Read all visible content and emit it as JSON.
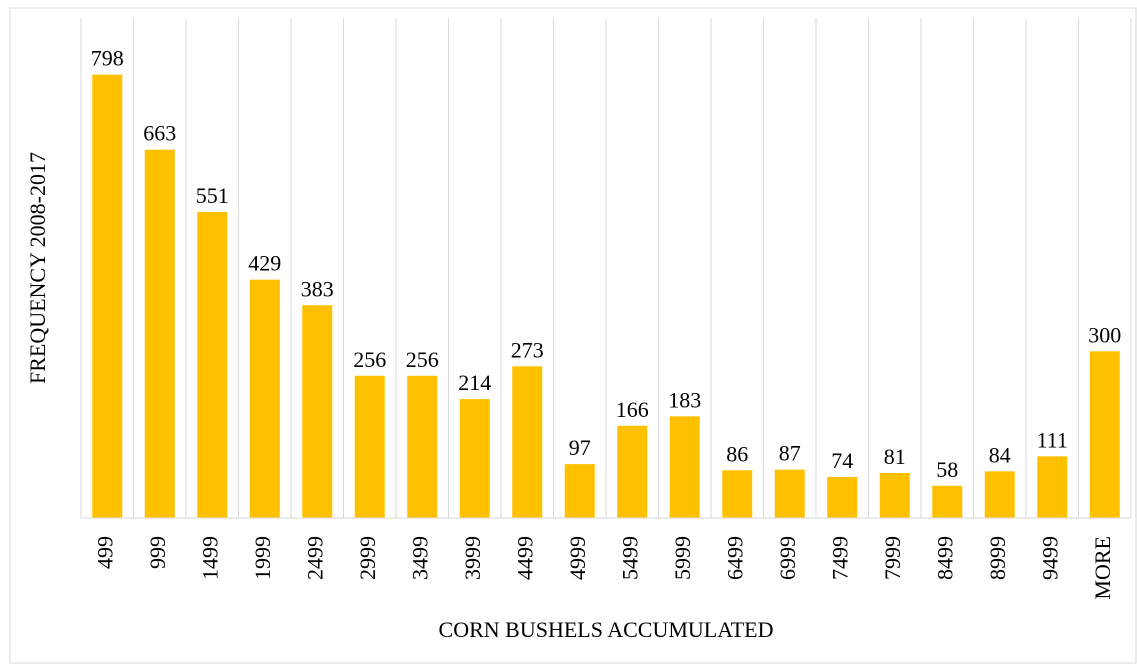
{
  "chart_data": {
    "type": "bar",
    "x_label": "CORN BUSHELS ACCUMULATED",
    "y_label": "FREQUENCY 2008-2017",
    "categories": [
      "499",
      "999",
      "1499",
      "1999",
      "2499",
      "2999",
      "3499",
      "3999",
      "4499",
      "4999",
      "5499",
      "5999",
      "6499",
      "6999",
      "7499",
      "7999",
      "8499",
      "8999",
      "9499",
      "MORE"
    ],
    "values": [
      798,
      663,
      551,
      429,
      383,
      256,
      256,
      214,
      273,
      97,
      166,
      183,
      86,
      87,
      74,
      81,
      58,
      84,
      111,
      300
    ],
    "color": "#ffc000",
    "ylim": [
      0,
      900
    ],
    "grid": true
  }
}
